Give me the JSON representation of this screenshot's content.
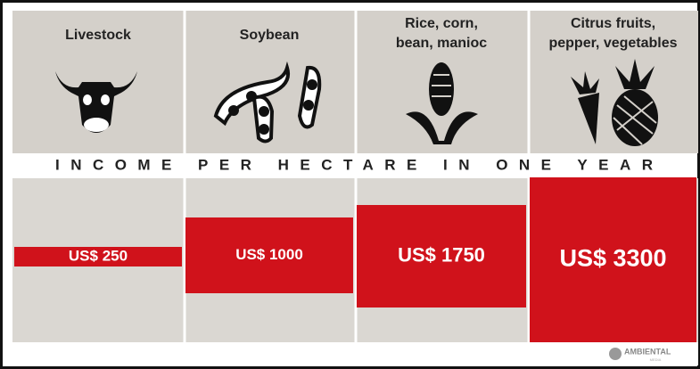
{
  "banner": "INCOME PER HECTARE IN ONE YEAR",
  "columns": [
    {
      "name": [
        "Livestock"
      ],
      "income": "US$ 250"
    },
    {
      "name": [
        "Soybean"
      ],
      "income": "US$ 1000"
    },
    {
      "name": [
        "Rice, corn,",
        "bean, manioc"
      ],
      "income": "US$ 1750"
    },
    {
      "name": [
        "Citrus fruits,",
        "pepper, vegetables"
      ],
      "income": "US$ 3300"
    }
  ],
  "logo": {
    "name": "AMBIENTAL",
    "sub": "MEDIA"
  }
}
